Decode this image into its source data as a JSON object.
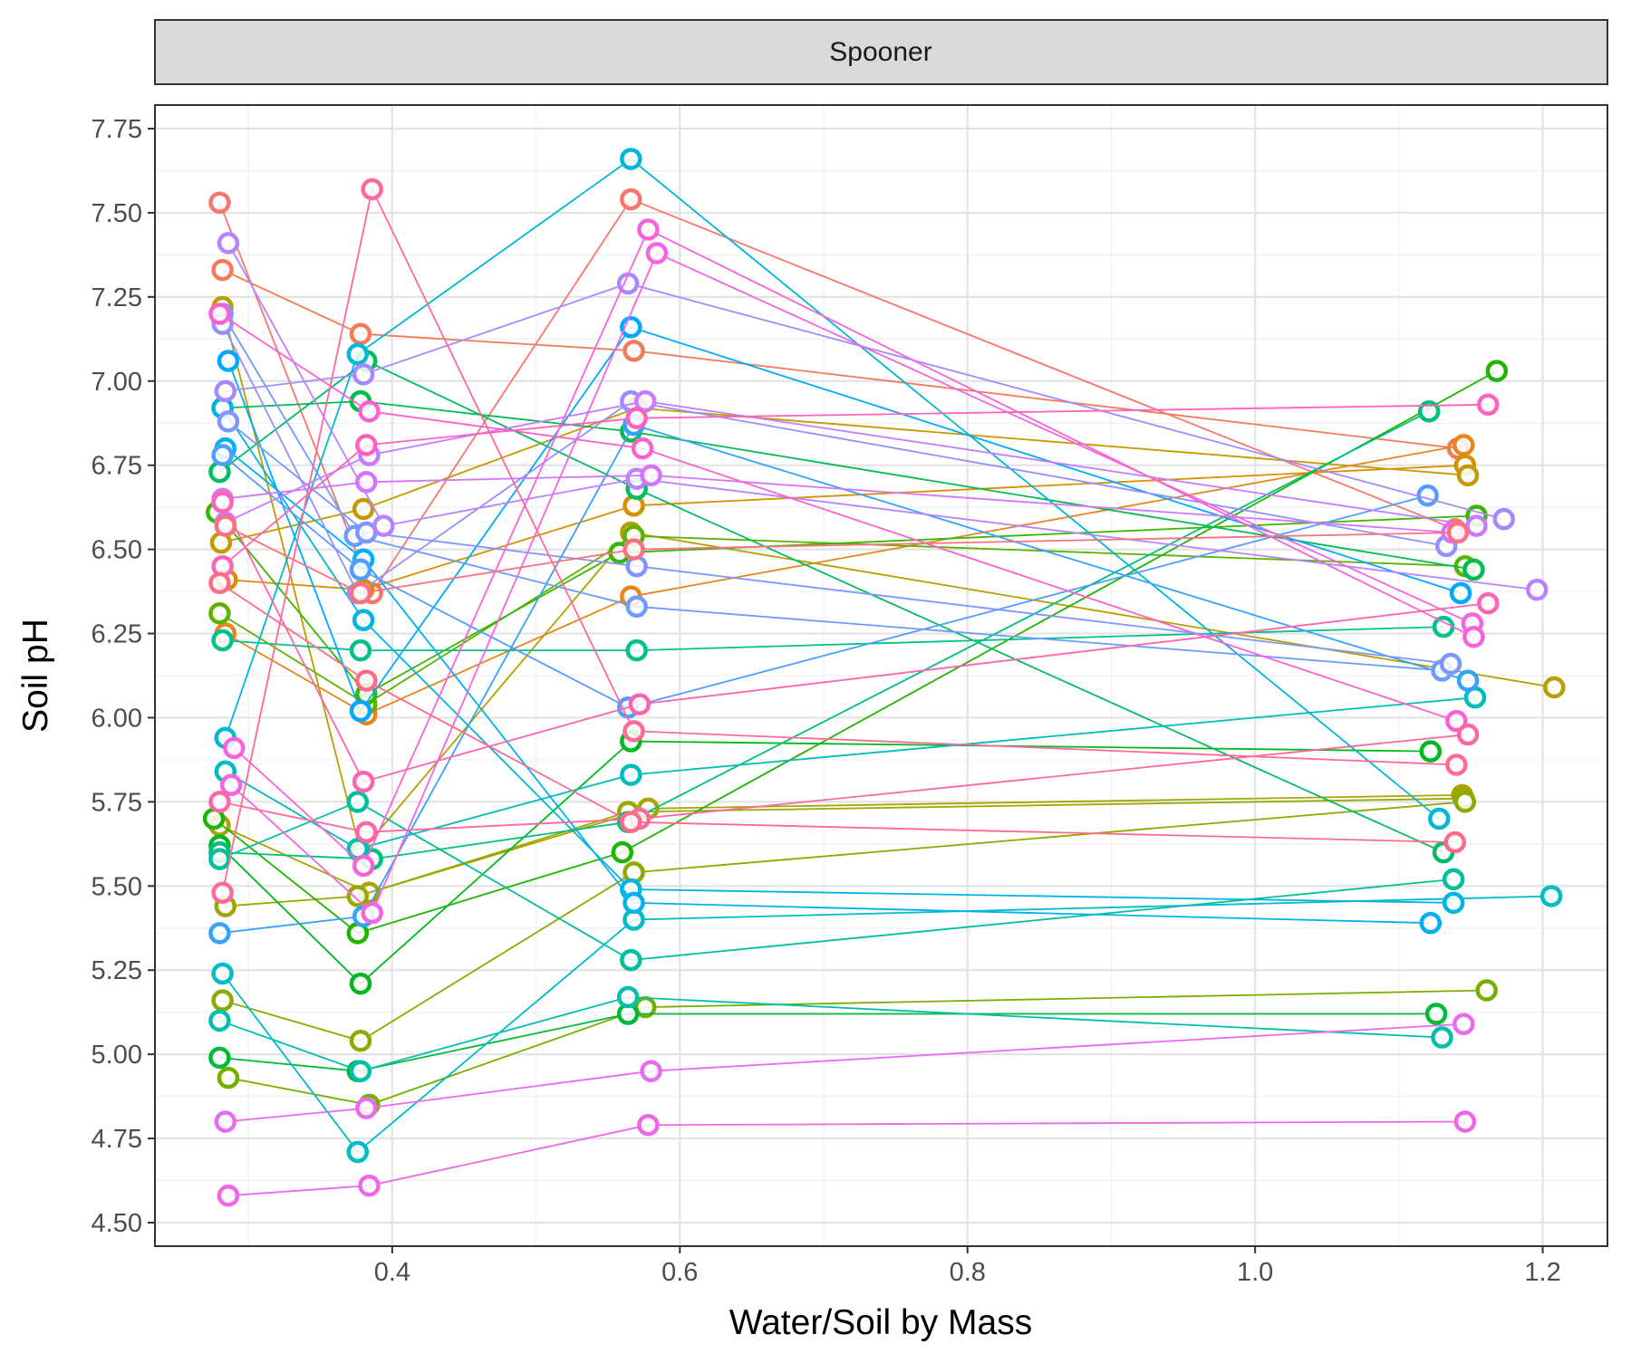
{
  "chart_data": {
    "type": "line",
    "facet_label": "Spooner",
    "xlabel": "Water/Soil by Mass",
    "ylabel": "Soil pH",
    "xlim": [
      0.235,
      1.245
    ],
    "ylim": [
      4.43,
      7.82
    ],
    "x_ticks": [
      0.4,
      0.6,
      0.8,
      1.0,
      1.2
    ],
    "x_tick_labels": [
      "0.4",
      "0.6",
      "0.8",
      "1.0",
      "1.2"
    ],
    "y_ticks": [
      4.5,
      4.75,
      5.0,
      5.25,
      5.5,
      5.75,
      6.0,
      6.25,
      6.5,
      6.75,
      7.0,
      7.25,
      7.5,
      7.75
    ],
    "y_tick_labels": [
      "4.50",
      "4.75",
      "5.00",
      "5.25",
      "5.50",
      "5.75",
      "6.00",
      "6.25",
      "6.50",
      "6.75",
      "7.00",
      "7.25",
      "7.50",
      "7.75"
    ],
    "grid": true,
    "legend": "none",
    "series": [
      {
        "color": "#F8766D",
        "x": [
          0.28,
          0.386,
          0.566,
          1.139
        ],
        "y": [
          7.53,
          6.37,
          7.54,
          6.56
        ]
      },
      {
        "color": "#F37B59",
        "x": [
          0.282,
          0.378,
          0.568,
          1.141
        ],
        "y": [
          7.33,
          7.14,
          7.09,
          6.8
        ]
      },
      {
        "color": "#E7861B",
        "x": [
          0.284,
          0.382,
          0.566,
          1.145
        ],
        "y": [
          6.25,
          6.01,
          6.36,
          6.81
        ]
      },
      {
        "color": "#D89000",
        "x": [
          0.285,
          0.38,
          0.568,
          1.146
        ],
        "y": [
          6.41,
          6.38,
          6.63,
          6.75
        ]
      },
      {
        "color": "#C49A00",
        "x": [
          0.281,
          0.38,
          0.57,
          1.148
        ],
        "y": [
          6.52,
          6.62,
          6.92,
          6.72
        ]
      },
      {
        "color": "#B79F00",
        "x": [
          0.282,
          0.378,
          0.566,
          1.208
        ],
        "y": [
          7.22,
          5.6,
          6.55,
          6.09
        ]
      },
      {
        "color": "#A9A400",
        "x": [
          0.28,
          0.384,
          0.578,
          1.144
        ],
        "y": [
          5.68,
          5.48,
          5.73,
          5.77
        ]
      },
      {
        "color": "#9AA800",
        "x": [
          0.284,
          0.376,
          0.564,
          1.145
        ],
        "y": [
          5.44,
          5.47,
          5.72,
          5.76
        ]
      },
      {
        "color": "#8AAB00",
        "x": [
          0.282,
          0.378,
          0.568,
          1.146
        ],
        "y": [
          5.16,
          5.04,
          5.54,
          5.75
        ]
      },
      {
        "color": "#77AF00",
        "x": [
          0.286,
          0.384,
          0.576,
          1.161
        ],
        "y": [
          4.93,
          4.85,
          5.14,
          5.19
        ]
      },
      {
        "color": "#5BB300",
        "x": [
          0.28,
          0.382,
          0.568,
          1.146
        ],
        "y": [
          6.31,
          6.04,
          6.54,
          6.45
        ]
      },
      {
        "color": "#39B600",
        "x": [
          0.278,
          0.382,
          0.558,
          1.154
        ],
        "y": [
          6.61,
          6.07,
          6.49,
          6.6
        ]
      },
      {
        "color": "#1EB400",
        "x": [
          0.276,
          0.376,
          0.56,
          1.168
        ],
        "y": [
          5.7,
          5.36,
          5.6,
          7.03
        ]
      },
      {
        "color": "#00B81F",
        "x": [
          0.28,
          0.378,
          0.566,
          1.122
        ],
        "y": [
          5.62,
          5.21,
          5.93,
          5.9
        ]
      },
      {
        "color": "#00BA38",
        "x": [
          0.28,
          0.376,
          0.564,
          1.126
        ],
        "y": [
          4.99,
          4.95,
          5.12,
          5.12
        ]
      },
      {
        "color": "#00BB4E",
        "x": [
          0.282,
          0.378,
          0.566,
          1.152
        ],
        "y": [
          6.92,
          6.94,
          6.85,
          6.44
        ]
      },
      {
        "color": "#00BC62",
        "x": [
          0.28,
          0.382,
          0.57,
          1.131
        ],
        "y": [
          6.73,
          7.06,
          6.68,
          5.6
        ]
      },
      {
        "color": "#00BF7D",
        "x": [
          0.28,
          0.386,
          0.564,
          1.121
        ],
        "y": [
          5.6,
          5.58,
          5.69,
          6.91
        ]
      },
      {
        "color": "#00C08B",
        "x": [
          0.282,
          0.378,
          0.57,
          1.131
        ],
        "y": [
          6.23,
          6.2,
          6.2,
          6.27
        ]
      },
      {
        "color": "#00BF9B",
        "x": [
          0.28,
          0.376,
          0.566,
          1.138
        ],
        "y": [
          5.58,
          5.75,
          5.28,
          5.52
        ]
      },
      {
        "color": "#00BFAB",
        "x": [
          0.28,
          0.378,
          0.564,
          1.13
        ],
        "y": [
          5.1,
          4.95,
          5.17,
          5.05
        ]
      },
      {
        "color": "#00BDBA",
        "x": [
          0.284,
          0.376,
          0.566,
          1.153
        ],
        "y": [
          5.84,
          5.61,
          5.83,
          6.06
        ]
      },
      {
        "color": "#00BBC8",
        "x": [
          0.282,
          0.376,
          0.568,
          1.206
        ],
        "y": [
          5.24,
          4.71,
          5.4,
          5.47
        ]
      },
      {
        "color": "#00B8D5",
        "x": [
          0.284,
          0.376,
          0.566,
          1.128
        ],
        "y": [
          5.94,
          7.08,
          7.66,
          5.7
        ]
      },
      {
        "color": "#00B4E2",
        "x": [
          0.282,
          0.38,
          0.566,
          1.138
        ],
        "y": [
          6.92,
          6.29,
          5.49,
          5.45
        ]
      },
      {
        "color": "#00B0F6",
        "x": [
          0.284,
          0.38,
          0.568,
          1.122
        ],
        "y": [
          6.8,
          6.47,
          5.45,
          5.39
        ]
      },
      {
        "color": "#00A9FF",
        "x": [
          0.286,
          0.378,
          0.566,
          1.143
        ],
        "y": [
          7.06,
          6.02,
          7.16,
          6.37
        ]
      },
      {
        "color": "#35A2FF",
        "x": [
          0.28,
          0.38,
          0.568,
          1.148
        ],
        "y": [
          5.36,
          5.41,
          6.87,
          6.11
        ]
      },
      {
        "color": "#529EFF",
        "x": [
          0.282,
          0.378,
          0.564,
          1.12
        ],
        "y": [
          6.78,
          6.44,
          6.03,
          6.66
        ]
      },
      {
        "color": "#6E9BFF",
        "x": [
          0.282,
          0.374,
          0.57,
          1.13
        ],
        "y": [
          7.2,
          6.54,
          6.33,
          6.14
        ]
      },
      {
        "color": "#7F96FF",
        "x": [
          0.286,
          0.382,
          0.57,
          1.136
        ],
        "y": [
          6.88,
          6.55,
          6.45,
          6.16
        ]
      },
      {
        "color": "#9590FF",
        "x": [
          0.282,
          0.376,
          0.566,
          1.133
        ],
        "y": [
          7.17,
          6.37,
          6.94,
          6.51
        ]
      },
      {
        "color": "#A58AFF",
        "x": [
          0.284,
          0.38,
          0.564,
          1.173
        ],
        "y": [
          6.97,
          7.02,
          7.29,
          6.59
        ]
      },
      {
        "color": "#B983FF",
        "x": [
          0.286,
          0.394,
          0.57,
          1.196
        ],
        "y": [
          7.41,
          6.57,
          6.71,
          6.38
        ]
      },
      {
        "color": "#C77CFF",
        "x": [
          0.284,
          0.384,
          0.576,
          1.154
        ],
        "y": [
          6.58,
          6.78,
          6.94,
          6.57
        ]
      },
      {
        "color": "#D575FE",
        "x": [
          0.282,
          0.382,
          0.58,
          1.137
        ],
        "y": [
          6.65,
          6.7,
          6.72,
          6.55
        ]
      },
      {
        "color": "#E76BF3",
        "x": [
          0.284,
          0.382,
          0.58,
          1.145
        ],
        "y": [
          4.8,
          4.84,
          4.95,
          5.09
        ]
      },
      {
        "color": "#F066E9",
        "x": [
          0.286,
          0.384,
          0.578,
          1.146
        ],
        "y": [
          4.58,
          4.61,
          4.79,
          4.8
        ]
      },
      {
        "color": "#F564E3",
        "x": [
          0.288,
          0.386,
          0.584,
          1.151
        ],
        "y": [
          5.8,
          5.42,
          7.38,
          6.28
        ]
      },
      {
        "color": "#FA62DB",
        "x": [
          0.29,
          0.38,
          0.578,
          1.152
        ],
        "y": [
          5.91,
          5.56,
          7.45,
          6.24
        ]
      },
      {
        "color": "#FD61D1",
        "x": [
          0.28,
          0.384,
          0.574,
          1.14
        ],
        "y": [
          7.2,
          6.91,
          6.8,
          5.99
        ]
      },
      {
        "color": "#FF62BC",
        "x": [
          0.282,
          0.382,
          0.57,
          1.162
        ],
        "y": [
          6.45,
          6.81,
          6.89,
          6.93
        ]
      },
      {
        "color": "#FF64B0",
        "x": [
          0.282,
          0.38,
          0.572,
          1.162
        ],
        "y": [
          6.64,
          5.81,
          6.04,
          6.34
        ]
      },
      {
        "color": "#FF67A4",
        "x": [
          0.28,
          0.382,
          0.572,
          1.148
        ],
        "y": [
          5.75,
          5.66,
          5.7,
          5.95
        ]
      },
      {
        "color": "#FF6A98",
        "x": [
          0.282,
          0.386,
          0.568,
          1.14
        ],
        "y": [
          5.48,
          7.57,
          5.96,
          5.86
        ]
      },
      {
        "color": "#FF6C8A",
        "x": [
          0.28,
          0.382,
          0.566,
          1.139
        ],
        "y": [
          6.4,
          6.11,
          5.69,
          5.63
        ]
      },
      {
        "color": "#FC717F",
        "x": [
          0.284,
          0.378,
          0.568,
          1.141
        ],
        "y": [
          6.57,
          6.37,
          6.5,
          6.55
        ]
      }
    ]
  }
}
